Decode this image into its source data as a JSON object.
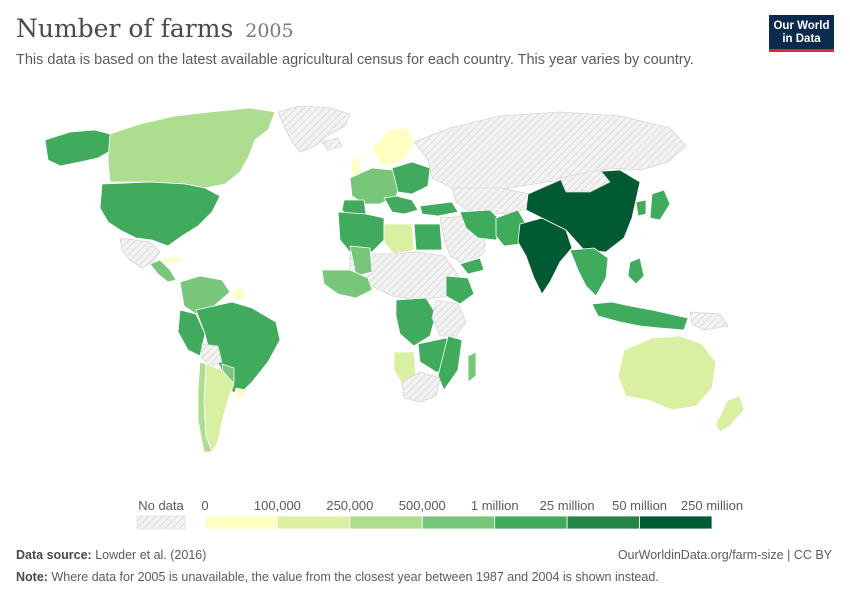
{
  "header": {
    "title": "Number of farms",
    "year": "2005",
    "subtitle": "This data is based on the latest available agricultural census for each country. This year varies by country."
  },
  "logo": {
    "line1": "Our World",
    "line2": "in Data"
  },
  "legend": {
    "no_data_label": "No data",
    "labels": [
      "0",
      "100,000",
      "250,000",
      "500,000",
      "1 million",
      "25 million",
      "50 million",
      "250 million"
    ],
    "colors": [
      "#ffffc4",
      "#d9f0a3",
      "#addd8e",
      "#78c679",
      "#41ab5d",
      "#238443",
      "#005a32"
    ],
    "no_data_color": "#eeeeee"
  },
  "footer": {
    "source_label": "Data source:",
    "source_text": "Lowder et al. (2016)",
    "url": "OurWorldinData.org/farm-size | CC BY",
    "note_label": "Note:",
    "note_text": "Where data for 2005 is unavailable, the value from the closest year between 1987 and 2004 is shown instead."
  }
}
